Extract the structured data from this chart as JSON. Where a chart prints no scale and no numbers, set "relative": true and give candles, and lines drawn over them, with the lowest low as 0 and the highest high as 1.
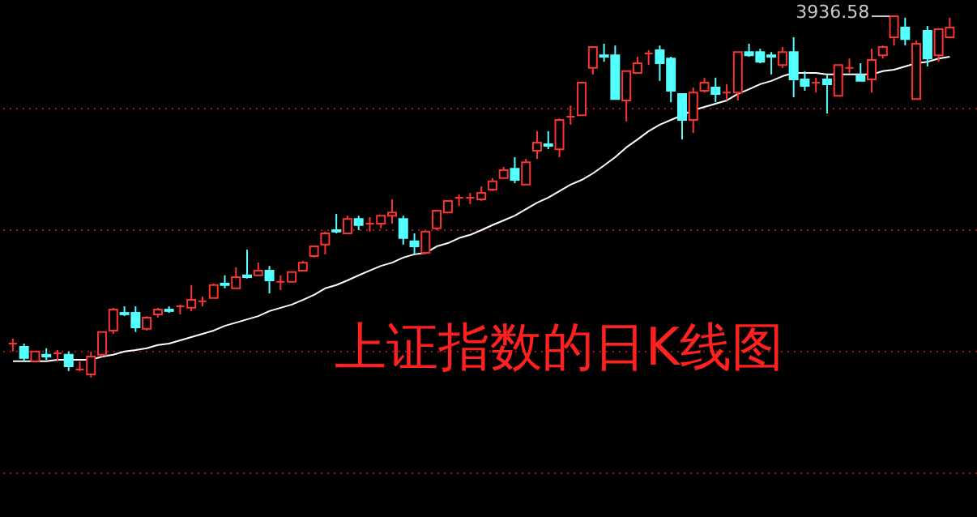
{
  "chart_data": {
    "type": "candlestick",
    "title": "上证指数的日K线图",
    "relative": true,
    "categories": [
      null,
      null,
      null,
      null,
      null,
      null,
      null,
      null,
      null,
      null,
      null,
      null,
      null,
      null,
      null,
      null,
      null,
      null,
      null,
      null,
      null,
      null,
      null,
      null,
      null,
      null,
      null,
      null,
      null,
      null,
      null,
      null,
      null,
      null,
      null,
      null,
      null,
      null,
      null,
      null,
      null,
      null,
      null,
      null,
      null,
      null,
      null,
      null,
      null,
      null,
      null,
      null,
      null,
      null,
      null,
      null,
      null,
      null,
      null,
      null,
      null,
      null,
      null,
      null,
      null,
      null,
      null,
      null,
      null,
      null,
      null,
      null,
      null,
      null,
      null,
      null,
      null,
      null,
      null,
      null,
      null,
      null,
      null,
      null,
      null
    ],
    "ohlc": [
      [
        0.094,
        0.108,
        0.072,
        0.094
      ],
      [
        0.085,
        0.094,
        0.045,
        0.054
      ],
      [
        0.045,
        0.072,
        0.045,
        0.072
      ],
      [
        0.063,
        0.081,
        0.049,
        0.058
      ],
      [
        0.067,
        0.076,
        0.045,
        0.067
      ],
      [
        0.063,
        0.072,
        0.018,
        0.031
      ],
      [
        0.022,
        0.045,
        0.018,
        0.022
      ],
      [
        0.009,
        0.072,
        0,
        0.058
      ],
      [
        0.063,
        0.126,
        0.058,
        0.126
      ],
      [
        0.13,
        0.193,
        0.121,
        0.188
      ],
      [
        0.179,
        0.197,
        0.17,
        0.175
      ],
      [
        0.179,
        0.197,
        0.126,
        0.139
      ],
      [
        0.135,
        0.17,
        0.13,
        0.166
      ],
      [
        0.175,
        0.193,
        0.166,
        0.188
      ],
      [
        0.188,
        0.197,
        0.179,
        0.184
      ],
      [
        0.197,
        0.202,
        0.175,
        0.197
      ],
      [
        0.193,
        0.256,
        0.184,
        0.215
      ],
      [
        0.211,
        0.224,
        0.197,
        0.211
      ],
      [
        0.22,
        0.26,
        0.22,
        0.256
      ],
      [
        0.26,
        0.283,
        0.247,
        0.256
      ],
      [
        0.247,
        0.305,
        0.247,
        0.278
      ],
      [
        0.283,
        0.354,
        0.274,
        0.278
      ],
      [
        0.283,
        0.318,
        0.283,
        0.296
      ],
      [
        0.296,
        0.309,
        0.233,
        0.269
      ],
      [
        0.265,
        0.283,
        0.242,
        0.265
      ],
      [
        0.265,
        0.292,
        0.265,
        0.292
      ],
      [
        0.296,
        0.323,
        0.296,
        0.318
      ],
      [
        0.336,
        0.363,
        0.332,
        0.363
      ],
      [
        0.368,
        0.404,
        0.341,
        0.399
      ],
      [
        0.408,
        0.453,
        0.399,
        0.404
      ],
      [
        0.399,
        0.448,
        0.399,
        0.439
      ],
      [
        0.439,
        0.448,
        0.408,
        0.422
      ],
      [
        0.426,
        0.444,
        0.404,
        0.426
      ],
      [
        0.426,
        0.448,
        0.413,
        0.448
      ],
      [
        0.448,
        0.493,
        0.426,
        0.457
      ],
      [
        0.439,
        0.448,
        0.368,
        0.386
      ],
      [
        0.377,
        0.399,
        0.341,
        0.363
      ],
      [
        0.345,
        0.404,
        0.341,
        0.404
      ],
      [
        0.413,
        0.462,
        0.408,
        0.462
      ],
      [
        0.457,
        0.489,
        0.457,
        0.489
      ],
      [
        0.498,
        0.507,
        0.475,
        0.498
      ],
      [
        0.498,
        0.511,
        0.48,
        0.498
      ],
      [
        0.493,
        0.529,
        0.489,
        0.511
      ],
      [
        0.52,
        0.552,
        0.516,
        0.543
      ],
      [
        0.552,
        0.583,
        0.552,
        0.574
      ],
      [
        0.578,
        0.61,
        0.538,
        0.547
      ],
      [
        0.534,
        0.605,
        0.534,
        0.596
      ],
      [
        0.628,
        0.682,
        0.605,
        0.65
      ],
      [
        0.646,
        0.682,
        0.632,
        0.641
      ],
      [
        0.632,
        0.717,
        0.61,
        0.713
      ],
      [
        0.722,
        0.753,
        0.7,
        0.722
      ],
      [
        0.726,
        0.816,
        0.726,
        0.816
      ],
      [
        0.857,
        0.915,
        0.839,
        0.915
      ],
      [
        0.892,
        0.924,
        0.874,
        0.888
      ],
      [
        0.892,
        0.919,
        0.771,
        0.771
      ],
      [
        0.767,
        0.848,
        0.709,
        0.848
      ],
      [
        0.843,
        0.888,
        0.843,
        0.87
      ],
      [
        0.897,
        0.906,
        0.865,
        0.897
      ],
      [
        0.906,
        0.919,
        0.821,
        0.87
      ],
      [
        0.883,
        0.888,
        0.762,
        0.794
      ],
      [
        0.785,
        0.785,
        0.659,
        0.713
      ],
      [
        0.713,
        0.803,
        0.677,
        0.789
      ],
      [
        0.794,
        0.83,
        0.789,
        0.816
      ],
      [
        0.803,
        0.83,
        0.762,
        0.785
      ],
      [
        0.789,
        0.812,
        0.767,
        0.789
      ],
      [
        0.789,
        0.901,
        0.767,
        0.901
      ],
      [
        0.901,
        0.924,
        0.888,
        0.892
      ],
      [
        0.901,
        0.91,
        0.87,
        0.874
      ],
      [
        0.892,
        0.901,
        0.839,
        0.888
      ],
      [
        0.865,
        0.915,
        0.857,
        0.901
      ],
      [
        0.901,
        0.942,
        0.776,
        0.825
      ],
      [
        0.825,
        0.848,
        0.794,
        0.807
      ],
      [
        0.816,
        0.83,
        0.789,
        0.816
      ],
      [
        0.825,
        0.839,
        0.731,
        0.812
      ],
      [
        0.78,
        0.865,
        0.78,
        0.865
      ],
      [
        0.857,
        0.883,
        0.843,
        0.857
      ],
      [
        0.834,
        0.87,
        0.821,
        0.821
      ],
      [
        0.825,
        0.91,
        0.789,
        0.879
      ],
      [
        0.892,
        0.919,
        0.883,
        0.915
      ],
      [
        0.942,
        1,
        0.919,
        1
      ],
      [
        0.969,
        0.996,
        0.919,
        0.937
      ],
      [
        0.771,
        0.933,
        0.771,
        0.924
      ],
      [
        0.96,
        0.973,
        0.861,
        0.883
      ],
      [
        0.892,
        0.964,
        0.874,
        0.964
      ],
      [
        0.942,
        0.996,
        0.942,
        0.969
      ]
    ],
    "colors": [
      "#ff3232",
      "#54ffff",
      "#ff3232",
      "#54ffff",
      "#ff3232",
      "#54ffff",
      "#ff3232",
      "#ff3232",
      "#ff3232",
      "#ff3232",
      "#54ffff",
      "#54ffff",
      "#ff3232",
      "#ff3232",
      "#54ffff",
      "#ff3232",
      "#ff3232",
      "#ff3232",
      "#ff3232",
      "#54ffff",
      "#ff3232",
      "#54ffff",
      "#ff3232",
      "#54ffff",
      "#ff3232",
      "#ff3232",
      "#ff3232",
      "#ff3232",
      "#ff3232",
      "#54ffff",
      "#ff3232",
      "#54ffff",
      "#ff3232",
      "#ff3232",
      "#ff3232",
      "#54ffff",
      "#54ffff",
      "#ff3232",
      "#ff3232",
      "#ff3232",
      "#ff3232",
      "#ff3232",
      "#ff3232",
      "#ff3232",
      "#ff3232",
      "#54ffff",
      "#ff3232",
      "#ff3232",
      "#54ffff",
      "#ff3232",
      "#ff3232",
      "#ff3232",
      "#ff3232",
      "#54ffff",
      "#54ffff",
      "#ff3232",
      "#ff3232",
      "#ff3232",
      "#54ffff",
      "#54ffff",
      "#54ffff",
      "#ff3232",
      "#ff3232",
      "#54ffff",
      "#ff3232",
      "#ff3232",
      "#54ffff",
      "#54ffff",
      "#54ffff",
      "#ff3232",
      "#54ffff",
      "#54ffff",
      "#ff3232",
      "#54ffff",
      "#ff3232",
      "#ff3232",
      "#54ffff",
      "#ff3232",
      "#ff3232",
      "#ff3232",
      "#54ffff",
      "#ff3232",
      "#54ffff",
      "#ff3232",
      "#ff3232"
    ],
    "series": [
      {
        "type": "line",
        "color": "#ffffff",
        "values": [
          0.045,
          0.045,
          0.045,
          0.045,
          0.049,
          0.049,
          0.049,
          0.049,
          0.058,
          0.063,
          0.072,
          0.076,
          0.081,
          0.09,
          0.094,
          0.103,
          0.112,
          0.121,
          0.13,
          0.143,
          0.152,
          0.161,
          0.17,
          0.184,
          0.193,
          0.202,
          0.215,
          0.229,
          0.247,
          0.256,
          0.269,
          0.283,
          0.296,
          0.309,
          0.318,
          0.332,
          0.341,
          0.345,
          0.363,
          0.372,
          0.386,
          0.395,
          0.408,
          0.422,
          0.435,
          0.448,
          0.466,
          0.484,
          0.498,
          0.516,
          0.534,
          0.547,
          0.565,
          0.587,
          0.61,
          0.637,
          0.659,
          0.682,
          0.7,
          0.713,
          0.726,
          0.74,
          0.749,
          0.758,
          0.767,
          0.785,
          0.798,
          0.812,
          0.821,
          0.834,
          0.843,
          0.843,
          0.843,
          0.839,
          0.839,
          0.839,
          0.839,
          0.839,
          0.848,
          0.852,
          0.861,
          0.87,
          0.874,
          0.883,
          0.888
        ]
      }
    ],
    "ref_lines": [
      {
        "axis": "y",
        "value": 0.744,
        "color": "#a01414",
        "line_style": "dotted"
      },
      {
        "axis": "y",
        "value": 0.408,
        "color": "#a01414",
        "line_style": "dotted"
      },
      {
        "axis": "y",
        "value": 0.072,
        "color": "#a01414",
        "line_style": "dotted"
      },
      {
        "axis": "y",
        "value": -0.265,
        "color": "#a01414",
        "line_style": "dotted"
      }
    ],
    "annotations": [
      "3936.58"
    ]
  }
}
